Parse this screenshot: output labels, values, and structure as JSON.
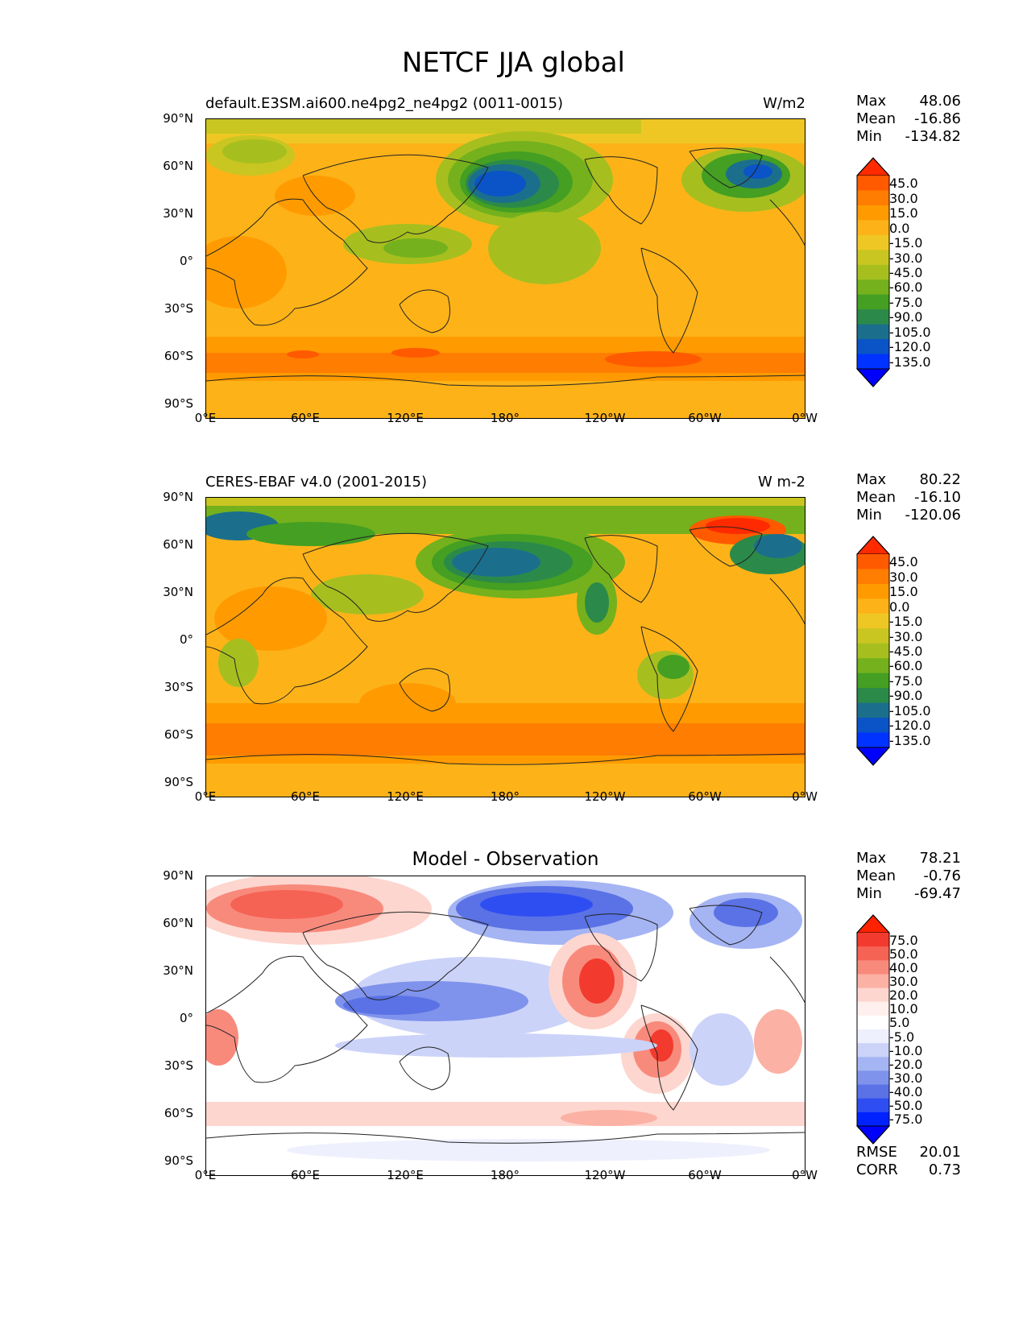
{
  "figure": {
    "title": "NETCF JJA global"
  },
  "axes": {
    "lat_ticks": [
      "90°N",
      "60°N",
      "30°N",
      "0°",
      "30°S",
      "60°S",
      "90°S"
    ],
    "lon_ticks": [
      "0°E",
      "60°E",
      "120°E",
      "180°",
      "120°W",
      "60°W",
      "0°W"
    ]
  },
  "panels": [
    {
      "id": "model",
      "left_title": "default.E3SM.ai600.ne4pg2_ne4pg2 (0011-0015)",
      "right_title": "W/m2",
      "center_title": "",
      "stats": [
        {
          "label": "Max",
          "value": "48.06"
        },
        {
          "label": "Mean",
          "value": "-16.86"
        },
        {
          "label": "Min",
          "value": "-134.82"
        }
      ],
      "colorbar": {
        "labels": [
          "45.0",
          "30.0",
          "15.0",
          "0.0",
          "-15.0",
          "-30.0",
          "-45.0",
          "-60.0",
          "-75.0",
          "-90.0",
          "-105.0",
          "-120.0",
          "-135.0"
        ],
        "colors": [
          "#ff2a00",
          "#ff5a00",
          "#ff7d00",
          "#ff9b00",
          "#fdb318",
          "#efc724",
          "#c9c621",
          "#a6bf1f",
          "#74b11d",
          "#449f22",
          "#2b8a4a",
          "#1b6f8c",
          "#0a54c7",
          "#0033ff",
          "#0000ff"
        ]
      }
    },
    {
      "id": "obs",
      "left_title": "CERES-EBAF v4.0 (2001-2015)",
      "right_title": "W m-2",
      "center_title": "",
      "stats": [
        {
          "label": "Max",
          "value": "80.22"
        },
        {
          "label": "Mean",
          "value": "-16.10"
        },
        {
          "label": "Min",
          "value": "-120.06"
        }
      ],
      "colorbar": {
        "labels": [
          "45.0",
          "30.0",
          "15.0",
          "0.0",
          "-15.0",
          "-30.0",
          "-45.0",
          "-60.0",
          "-75.0",
          "-90.0",
          "-105.0",
          "-120.0",
          "-135.0"
        ],
        "colors": [
          "#ff2a00",
          "#ff5a00",
          "#ff7d00",
          "#ff9b00",
          "#fdb318",
          "#efc724",
          "#c9c621",
          "#a6bf1f",
          "#74b11d",
          "#449f22",
          "#2b8a4a",
          "#1b6f8c",
          "#0a54c7",
          "#0033ff",
          "#0000ff"
        ]
      }
    },
    {
      "id": "diff",
      "left_title": "",
      "right_title": "",
      "center_title": "Model - Observation",
      "stats": [
        {
          "label": "Max",
          "value": "78.21"
        },
        {
          "label": "Mean",
          "value": "-0.76"
        },
        {
          "label": "Min",
          "value": "-69.47"
        }
      ],
      "extra_stats": [
        {
          "label": "RMSE",
          "value": "20.01"
        },
        {
          "label": "CORR",
          "value": "0.73"
        }
      ],
      "colorbar": {
        "labels": [
          "75.0",
          "50.0",
          "40.0",
          "30.0",
          "20.0",
          "10.0",
          "5.0",
          "-5.0",
          "-10.0",
          "-20.0",
          "-30.0",
          "-40.0",
          "-50.0",
          "-75.0"
        ],
        "colors": [
          "#ff2200",
          "#f23a2e",
          "#f56355",
          "#f88a7c",
          "#fbb1a4",
          "#fdd6cf",
          "#fff0ee",
          "#ffffff",
          "#eef0fe",
          "#ccd3f9",
          "#a5b4f3",
          "#7f93ec",
          "#5a72e5",
          "#2f4ef2",
          "#0022ff",
          "#0000ff"
        ]
      }
    }
  ]
}
